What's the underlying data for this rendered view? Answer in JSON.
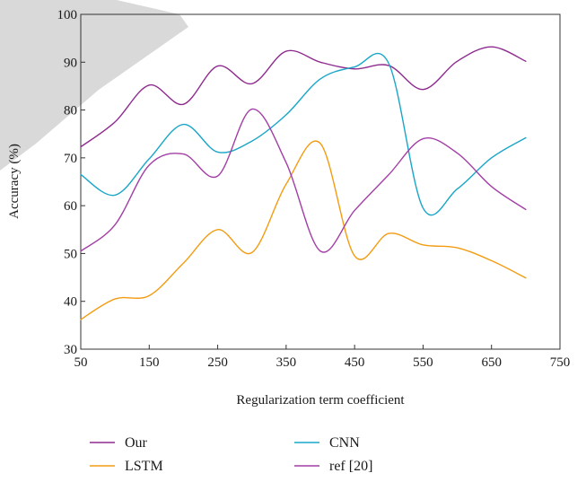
{
  "chart_data": {
    "type": "line",
    "title": "",
    "xlabel": "Regularization term coefficient",
    "ylabel": "Accuracy (%)",
    "xlim": [
      50,
      750
    ],
    "ylim": [
      30,
      100
    ],
    "xticks": [
      50,
      150,
      250,
      350,
      450,
      550,
      650,
      750
    ],
    "yticks": [
      30,
      40,
      50,
      60,
      70,
      80,
      90,
      100
    ],
    "grid": false,
    "legend_position": "bottom",
    "series": [
      {
        "name": "Our",
        "color": "#8e2b8e",
        "x": [
          50,
          100,
          150,
          200,
          250,
          300,
          350,
          400,
          450,
          500,
          550,
          600,
          650,
          700
        ],
        "y": [
          72.3,
          77.5,
          85.2,
          81.2,
          89.2,
          85.5,
          92.3,
          90.0,
          88.6,
          89.3,
          84.3,
          90.2,
          93.2,
          90.2
        ]
      },
      {
        "name": "CNN",
        "color": "#1aa6c8",
        "x": [
          50,
          100,
          150,
          200,
          250,
          300,
          350,
          400,
          450,
          500,
          550,
          600,
          650,
          700
        ],
        "y": [
          66.5,
          62.2,
          69.8,
          77.0,
          71.2,
          73.5,
          79.0,
          86.5,
          89.0,
          89.7,
          59.5,
          63.5,
          70.0,
          74.2
        ]
      },
      {
        "name": "LSTM",
        "color": "#f39c12",
        "x": [
          50,
          100,
          150,
          200,
          250,
          300,
          350,
          400,
          450,
          500,
          550,
          600,
          650,
          700
        ],
        "y": [
          36.2,
          40.5,
          41.2,
          48.0,
          55.0,
          50.2,
          64.5,
          73.0,
          49.5,
          54.2,
          51.8,
          51.2,
          48.5,
          44.9
        ]
      },
      {
        "name": "ref [20]",
        "color": "#a23fa6",
        "x": [
          50,
          100,
          150,
          200,
          250,
          300,
          350,
          400,
          450,
          500,
          550,
          600,
          650,
          700
        ],
        "y": [
          50.5,
          56.0,
          68.5,
          70.8,
          66.2,
          80.2,
          69.0,
          50.5,
          59.0,
          66.5,
          74.0,
          71.0,
          64.0,
          59.2
        ]
      }
    ]
  },
  "legend": {
    "items": [
      {
        "label": "Our",
        "color": "#8e2b8e"
      },
      {
        "label": "CNN",
        "color": "#1aa6c8"
      },
      {
        "label": "LSTM",
        "color": "#f39c12"
      },
      {
        "label": "ref [20]",
        "color": "#a23fa6"
      }
    ]
  }
}
